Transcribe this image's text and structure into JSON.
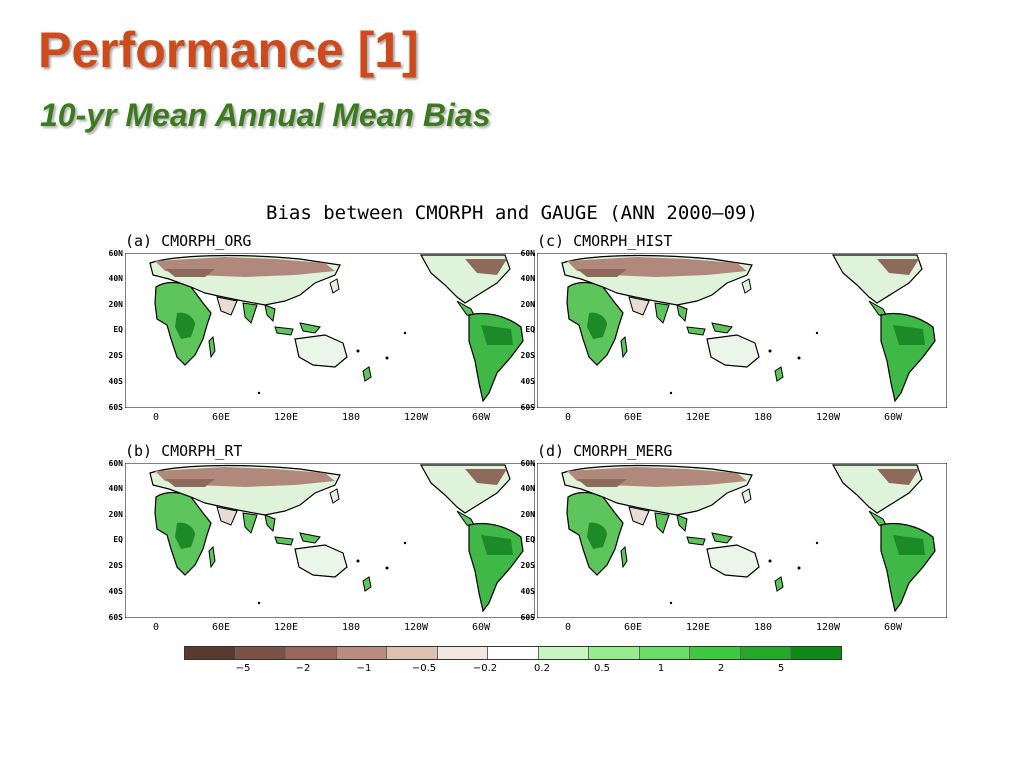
{
  "slide": {
    "title": "Performance [1]",
    "subtitle": "10-yr Mean Annual Mean Bias"
  },
  "figure": {
    "title": "Bias between CMORPH and GAUGE (ANN 2000—09)",
    "lat_labels": [
      "60N",
      "40N",
      "20N",
      "EQ",
      "20S",
      "40S",
      "60S"
    ],
    "lon_labels": [
      "0",
      "60E",
      "120E",
      "180",
      "120W",
      "60W"
    ],
    "panels": [
      {
        "label": "(a) CMORPH_ORG"
      },
      {
        "label": "(c) CMORPH_HIST"
      },
      {
        "label": "(b) CMORPH_RT"
      },
      {
        "label": "(d) CMORPH_MERG"
      }
    ],
    "colorbar": {
      "colors": [
        "#5a3a30",
        "#7a5246",
        "#98685c",
        "#b88d80",
        "#dcc0b2",
        "#f3e8e1",
        "#ffffff",
        "#c8f5c0",
        "#98ec90",
        "#6ade66",
        "#3ec840",
        "#22aa28",
        "#0e8a16"
      ],
      "ticks": [
        "−5",
        "−2",
        "−1",
        "−0.5",
        "−0.2",
        "0.2",
        "0.5",
        "1",
        "2",
        "5"
      ]
    },
    "colors": {
      "dry_bias": "#8a6658",
      "wet_bias": "#3fb847",
      "strong_wet": "#1d8a28"
    }
  }
}
